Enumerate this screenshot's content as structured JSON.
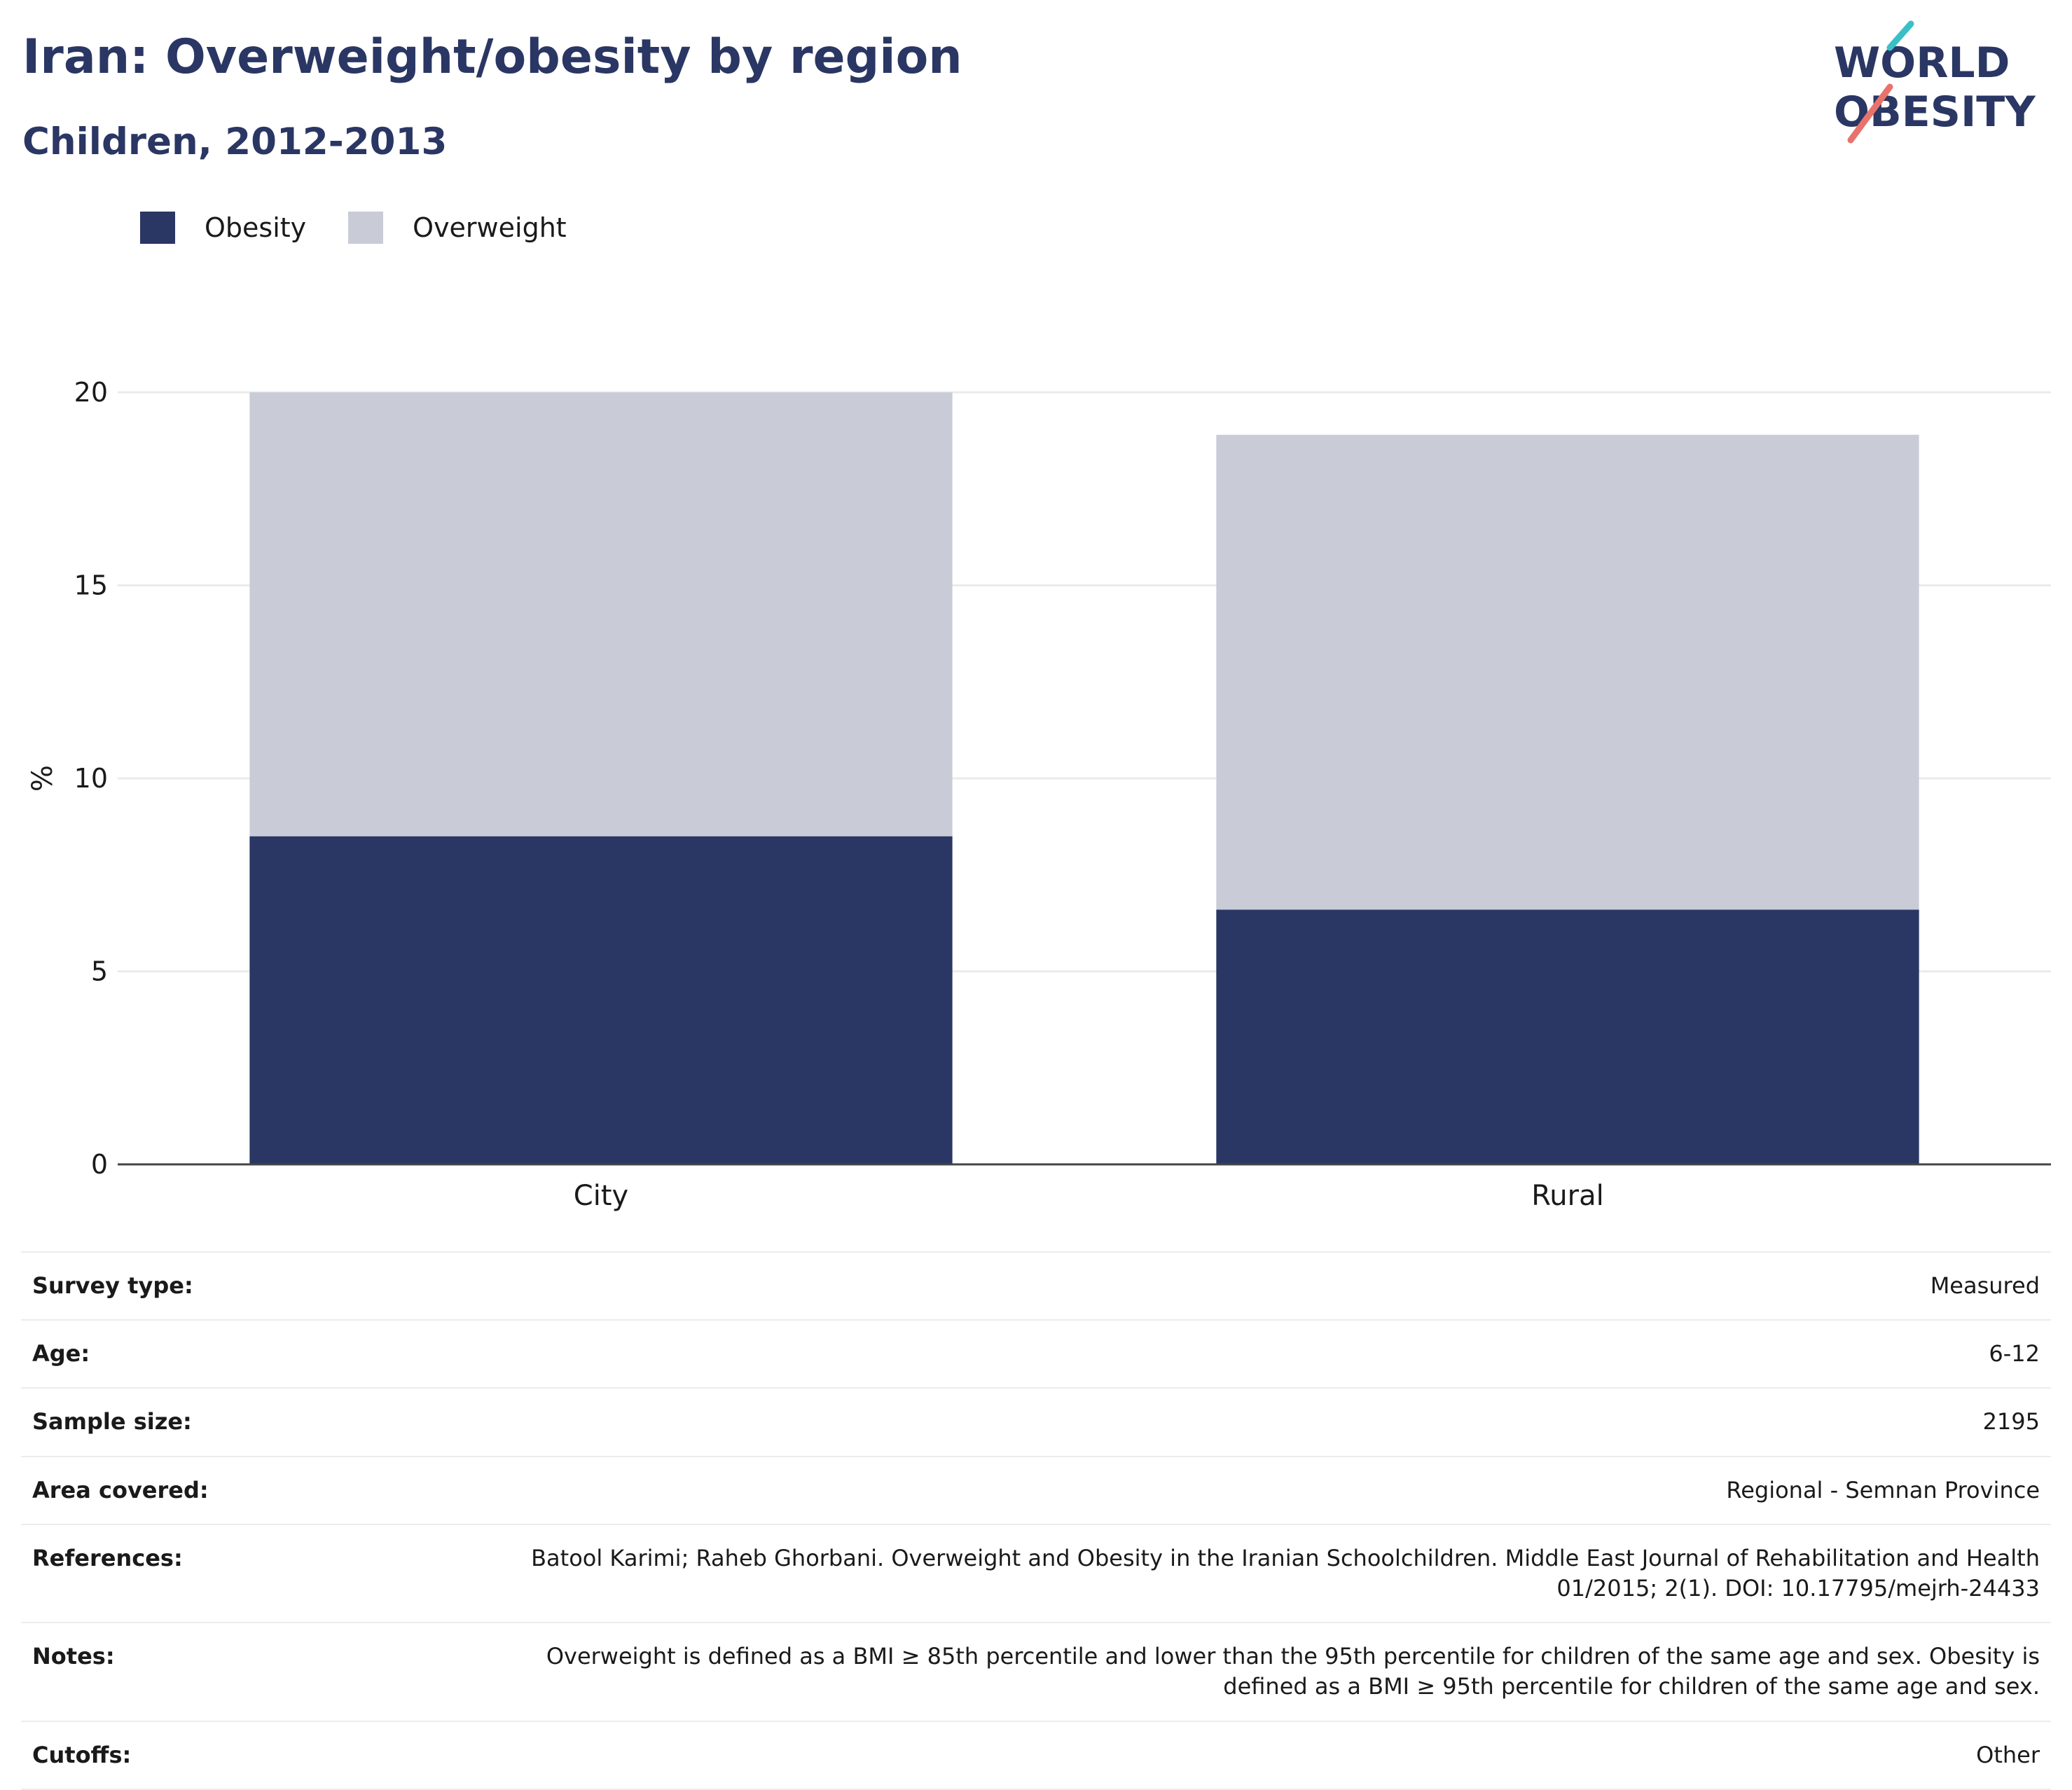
{
  "header": {
    "title": "Iran: Overweight/obesity by region",
    "subtitle": "Children, 2012-2013"
  },
  "logo": {
    "line1": "WORLD",
    "line2": "OBESITY"
  },
  "colors": {
    "obesity": "#2a3663",
    "overweight": "#c9ccd7",
    "title": "#2a3663",
    "logo_teal": "#3bbfc6",
    "logo_coral": "#e8736c"
  },
  "chart_data": {
    "type": "bar",
    "stacked": true,
    "categories": [
      "City",
      "Rural"
    ],
    "series": [
      {
        "name": "Obesity",
        "values": [
          8.5,
          6.6
        ]
      },
      {
        "name": "Overweight",
        "values": [
          11.5,
          12.3
        ]
      }
    ],
    "xlabel": "",
    "ylabel": "%",
    "ylim": [
      0,
      20
    ],
    "yticks": [
      0,
      5,
      10,
      15,
      20
    ],
    "grid": true,
    "legend_position": "top-left"
  },
  "info": {
    "rows": [
      {
        "label": "Survey type:",
        "value": "Measured"
      },
      {
        "label": "Age:",
        "value": "6-12"
      },
      {
        "label": "Sample size:",
        "value": "2195"
      },
      {
        "label": "Area covered:",
        "value": "Regional - Semnan Province"
      },
      {
        "label": "References:",
        "value": "Batool Karimi; Raheb Ghorbani. Overweight and Obesity in the Iranian Schoolchildren. Middle East Journal of Rehabilitation and Health 01/2015; 2(1). DOI: 10.17795/mejrh-24433"
      },
      {
        "label": "Notes:",
        "value": "Overweight is defined as a BMI ≥ 85th percentile and lower than the 95th percentile for children of the same age and sex. Obesity is defined as a BMI ≥ 95th percentile for children of the same age and sex."
      },
      {
        "label": "Cutoffs:",
        "value": "Other"
      }
    ]
  }
}
